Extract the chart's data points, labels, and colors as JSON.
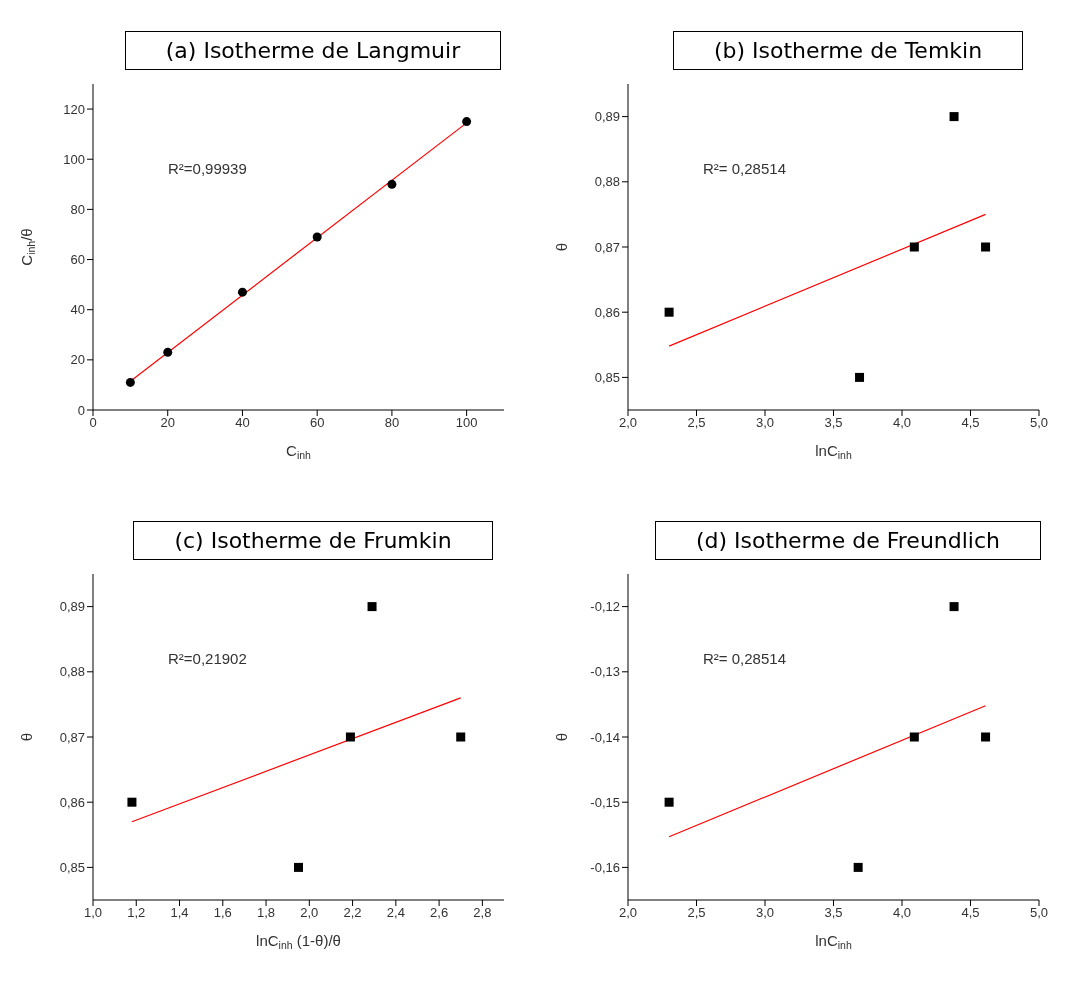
{
  "chart_data": [
    {
      "type": "scatter",
      "title": "(a) Isotherme de Langmuir",
      "xlabel": "C$_{inh}$",
      "ylabel": "C$_{inh}$/θ",
      "grid": false,
      "annotations": [
        "R²=0,99939"
      ],
      "xlim": [
        0,
        110
      ],
      "xticks": [
        0,
        20,
        40,
        60,
        80,
        100
      ],
      "ylim": [
        0,
        130
      ],
      "yticks": [
        0,
        20,
        40,
        60,
        80,
        100,
        120
      ],
      "series": [
        {
          "color": "#000000",
          "marker": "circle",
          "x": [
            10,
            20,
            40,
            60,
            80,
            100
          ],
          "values": [
            11,
            23,
            47,
            69,
            90,
            115
          ]
        },
        {
          "type": "line",
          "marker": "none",
          "color": "#ff0000",
          "x": [
            10,
            100
          ],
          "values": [
            11.5,
            114.5
          ]
        }
      ]
    },
    {
      "type": "scatter",
      "title": "(b) Isotherme de Temkin",
      "xlabel": "lnC$_{inh}$",
      "ylabel": "θ",
      "grid": false,
      "annotations": [
        "R²= 0,28514"
      ],
      "xlim": [
        2,
        5
      ],
      "xticks": [
        {
          "value": 2,
          "label": "2,0"
        },
        {
          "value": 2.5,
          "label": "2,5"
        },
        {
          "value": 3,
          "label": "3,0"
        },
        {
          "value": 3.5,
          "label": "3,5"
        },
        {
          "value": 4,
          "label": "4,0"
        },
        {
          "value": 4.5,
          "label": "4,5"
        },
        {
          "value": 5,
          "label": "5,0"
        }
      ],
      "ylim": [
        0.845,
        0.895
      ],
      "yticks": [
        {
          "value": 0.85,
          "label": "0,85"
        },
        {
          "value": 0.86,
          "label": "0,86"
        },
        {
          "value": 0.87,
          "label": "0,87"
        },
        {
          "value": 0.88,
          "label": "0,88"
        },
        {
          "value": 0.89,
          "label": "0,89"
        }
      ],
      "series": [
        {
          "color": "#000000",
          "marker": "square",
          "x": [
            2.3,
            3.69,
            4.09,
            4.38,
            4.61
          ],
          "values": [
            0.86,
            0.85,
            0.87,
            0.89,
            0.87
          ]
        },
        {
          "type": "line",
          "marker": "none",
          "color": "#ff0000",
          "x": [
            2.3,
            4.61
          ],
          "values": [
            0.8548,
            0.875
          ]
        }
      ]
    },
    {
      "type": "scatter",
      "title": "(c) Isotherme de Frumkin",
      "xlabel": "lnC$_{inh}$ (1-θ)/θ",
      "ylabel": "θ",
      "grid": false,
      "annotations": [
        "R²=0,21902"
      ],
      "xlim": [
        1,
        2.9
      ],
      "xticks": [
        {
          "value": 1,
          "label": "1,0"
        },
        {
          "value": 1.2,
          "label": "1,2"
        },
        {
          "value": 1.4,
          "label": "1,4"
        },
        {
          "value": 1.6,
          "label": "1,6"
        },
        {
          "value": 1.8,
          "label": "1,8"
        },
        {
          "value": 2,
          "label": "2,0"
        },
        {
          "value": 2.2,
          "label": "2,2"
        },
        {
          "value": 2.4,
          "label": "2,4"
        },
        {
          "value": 2.6,
          "label": "2,6"
        },
        {
          "value": 2.8,
          "label": "2,8"
        }
      ],
      "ylim": [
        0.845,
        0.895
      ],
      "yticks": [
        {
          "value": 0.85,
          "label": "0,85"
        },
        {
          "value": 0.86,
          "label": "0,86"
        },
        {
          "value": 0.87,
          "label": "0,87"
        },
        {
          "value": 0.88,
          "label": "0,88"
        },
        {
          "value": 0.89,
          "label": "0,89"
        }
      ],
      "series": [
        {
          "color": "#000000",
          "marker": "square",
          "x": [
            1.18,
            1.95,
            2.19,
            2.29,
            2.7
          ],
          "values": [
            0.86,
            0.85,
            0.87,
            0.89,
            0.87
          ]
        },
        {
          "type": "line",
          "marker": "none",
          "color": "#ff0000",
          "x": [
            1.18,
            2.7
          ],
          "values": [
            0.857,
            0.876
          ]
        }
      ]
    },
    {
      "type": "scatter",
      "title": "(d) Isotherme de Freundlich",
      "xlabel": "lnC$_{inh}$",
      "ylabel": "θ",
      "grid": false,
      "annotations": [
        "R²= 0,28514"
      ],
      "xlim": [
        2,
        5
      ],
      "xticks": [
        {
          "value": 2,
          "label": "2,0"
        },
        {
          "value": 2.5,
          "label": "2,5"
        },
        {
          "value": 3,
          "label": "3,0"
        },
        {
          "value": 3.5,
          "label": "3,5"
        },
        {
          "value": 4,
          "label": "4,0"
        },
        {
          "value": 4.5,
          "label": "4,5"
        },
        {
          "value": 5,
          "label": "5,0"
        }
      ],
      "ylim": [
        -0.165,
        -0.115
      ],
      "yticks": [
        {
          "value": -0.16,
          "label": "-0,16"
        },
        {
          "value": -0.15,
          "label": "-0,15"
        },
        {
          "value": -0.14,
          "label": "-0,14"
        },
        {
          "value": -0.13,
          "label": "-0,13"
        },
        {
          "value": -0.12,
          "label": "-0,12"
        }
      ],
      "series": [
        {
          "color": "#000000",
          "marker": "square",
          "x": [
            2.3,
            3.68,
            4.09,
            4.38,
            4.61
          ],
          "values": [
            -0.15,
            -0.16,
            -0.14,
            -0.12,
            -0.14
          ]
        },
        {
          "type": "line",
          "marker": "none",
          "color": "#ff0000",
          "x": [
            2.3,
            4.61
          ],
          "values": [
            -0.1553,
            -0.1352
          ]
        }
      ]
    }
  ]
}
